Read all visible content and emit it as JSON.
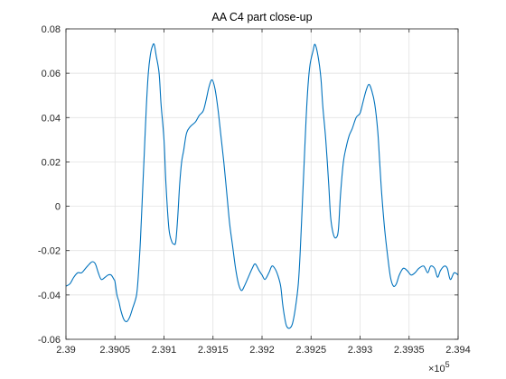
{
  "chart_data": {
    "type": "line",
    "title": "AA C4 part close-up",
    "xlabel": "",
    "ylabel": "",
    "x_exponent_label": "×10",
    "x_exponent_power": "5",
    "xlim": [
      2.39,
      2.394
    ],
    "ylim": [
      -0.06,
      0.08
    ],
    "x_ticks": [
      2.39,
      2.3905,
      2.391,
      2.3915,
      2.392,
      2.3925,
      2.393,
      2.3935,
      2.394
    ],
    "x_tick_labels": [
      "2.39",
      "2.3905",
      "2.391",
      "2.3915",
      "2.392",
      "2.3925",
      "2.393",
      "2.3935",
      "2.394"
    ],
    "y_ticks": [
      -0.06,
      -0.04,
      -0.02,
      0,
      0.02,
      0.04,
      0.06,
      0.08
    ],
    "y_tick_labels": [
      "-0.06",
      "-0.04",
      "-0.02",
      "0",
      "0.02",
      "0.04",
      "0.06",
      "0.08"
    ],
    "grid": true,
    "series": [
      {
        "color": "#0072bd",
        "points": [
          [
            2.39,
            -0.036
          ],
          [
            2.39004,
            -0.035
          ],
          [
            2.39008,
            -0.032
          ],
          [
            2.39012,
            -0.03
          ],
          [
            2.39016,
            -0.03
          ],
          [
            2.3902,
            -0.028
          ],
          [
            2.39024,
            -0.026
          ],
          [
            2.39027,
            -0.025
          ],
          [
            2.3903,
            -0.026
          ],
          [
            2.39033,
            -0.03
          ],
          [
            2.39036,
            -0.033
          ],
          [
            2.3904,
            -0.032
          ],
          [
            2.39043,
            -0.031
          ],
          [
            2.39046,
            -0.031
          ],
          [
            2.39049,
            -0.033
          ],
          [
            2.3905,
            -0.034
          ],
          [
            2.39052,
            -0.04
          ],
          [
            2.39054,
            -0.043
          ],
          [
            2.39056,
            -0.047
          ],
          [
            2.39059,
            -0.051
          ],
          [
            2.39062,
            -0.052
          ],
          [
            2.39065,
            -0.05
          ],
          [
            2.39068,
            -0.046
          ],
          [
            2.39072,
            -0.04
          ],
          [
            2.39074,
            -0.03
          ],
          [
            2.39076,
            -0.015
          ],
          [
            2.39078,
            0.005
          ],
          [
            2.3908,
            0.025
          ],
          [
            2.39082,
            0.045
          ],
          [
            2.39084,
            0.06
          ],
          [
            2.39086,
            0.068
          ],
          [
            2.39088,
            0.072
          ],
          [
            2.3909,
            0.073
          ],
          [
            2.39092,
            0.068
          ],
          [
            2.39095,
            0.06
          ],
          [
            2.39097,
            0.046
          ],
          [
            2.391,
            0.03
          ],
          [
            2.39102,
            0.01
          ],
          [
            2.39105,
            -0.01
          ],
          [
            2.39108,
            -0.016
          ],
          [
            2.3911,
            -0.017
          ],
          [
            2.39112,
            -0.016
          ],
          [
            2.39114,
            -0.005
          ],
          [
            2.39116,
            0.01
          ],
          [
            2.39118,
            0.02
          ],
          [
            2.3912,
            0.025
          ],
          [
            2.39123,
            0.033
          ],
          [
            2.39127,
            0.036
          ],
          [
            2.39132,
            0.038
          ],
          [
            2.39136,
            0.041
          ],
          [
            2.3914,
            0.043
          ],
          [
            2.39143,
            0.048
          ],
          [
            2.39146,
            0.054
          ],
          [
            2.39149,
            0.057
          ],
          [
            2.39152,
            0.053
          ],
          [
            2.39155,
            0.044
          ],
          [
            2.39158,
            0.032
          ],
          [
            2.39161,
            0.02
          ],
          [
            2.39164,
            0.006
          ],
          [
            2.39167,
            -0.008
          ],
          [
            2.3917,
            -0.018
          ],
          [
            2.39173,
            -0.028
          ],
          [
            2.39176,
            -0.035
          ],
          [
            2.39179,
            -0.038
          ],
          [
            2.39182,
            -0.036
          ],
          [
            2.39186,
            -0.032
          ],
          [
            2.3919,
            -0.028
          ],
          [
            2.39193,
            -0.026
          ],
          [
            2.39197,
            -0.029
          ],
          [
            2.392,
            -0.031
          ],
          [
            2.39203,
            -0.033
          ],
          [
            2.39207,
            -0.03
          ],
          [
            2.3921,
            -0.027
          ],
          [
            2.39213,
            -0.028
          ],
          [
            2.39216,
            -0.031
          ],
          [
            2.39219,
            -0.036
          ],
          [
            2.39221,
            -0.044
          ],
          [
            2.39223,
            -0.05
          ],
          [
            2.39225,
            -0.054
          ],
          [
            2.39228,
            -0.055
          ],
          [
            2.39231,
            -0.053
          ],
          [
            2.39234,
            -0.046
          ],
          [
            2.39237,
            -0.035
          ],
          [
            2.39239,
            -0.02
          ],
          [
            2.39241,
            0.0
          ],
          [
            2.39243,
            0.02
          ],
          [
            2.39245,
            0.04
          ],
          [
            2.39247,
            0.055
          ],
          [
            2.39249,
            0.064
          ],
          [
            2.39252,
            0.07
          ],
          [
            2.39254,
            0.073
          ],
          [
            2.39257,
            0.068
          ],
          [
            2.3926,
            0.058
          ],
          [
            2.39262,
            0.045
          ],
          [
            2.39265,
            0.03
          ],
          [
            2.39268,
            0.01
          ],
          [
            2.3927,
            -0.005
          ],
          [
            2.39273,
            -0.013
          ],
          [
            2.39276,
            -0.014
          ],
          [
            2.39278,
            -0.01
          ],
          [
            2.3928,
            0.005
          ],
          [
            2.39283,
            0.02
          ],
          [
            2.39286,
            0.027
          ],
          [
            2.39289,
            0.032
          ],
          [
            2.39292,
            0.035
          ],
          [
            2.39296,
            0.04
          ],
          [
            2.393,
            0.042
          ],
          [
            2.39303,
            0.047
          ],
          [
            2.39306,
            0.052
          ],
          [
            2.39309,
            0.055
          ],
          [
            2.39312,
            0.052
          ],
          [
            2.39315,
            0.046
          ],
          [
            2.39318,
            0.034
          ],
          [
            2.3932,
            0.02
          ],
          [
            2.39322,
            0.006
          ],
          [
            2.39325,
            -0.01
          ],
          [
            2.39328,
            -0.022
          ],
          [
            2.39331,
            -0.032
          ],
          [
            2.39334,
            -0.036
          ],
          [
            2.39337,
            -0.035
          ],
          [
            2.3934,
            -0.031
          ],
          [
            2.39344,
            -0.028
          ],
          [
            2.39348,
            -0.029
          ],
          [
            2.39352,
            -0.031
          ],
          [
            2.39356,
            -0.03
          ],
          [
            2.3936,
            -0.028
          ],
          [
            2.39365,
            -0.027
          ],
          [
            2.39369,
            -0.03
          ],
          [
            2.39372,
            -0.027
          ],
          [
            2.39376,
            -0.028
          ],
          [
            2.39379,
            -0.032
          ],
          [
            2.39382,
            -0.029
          ],
          [
            2.39386,
            -0.027
          ],
          [
            2.39389,
            -0.028
          ],
          [
            2.39392,
            -0.033
          ],
          [
            2.39396,
            -0.03
          ],
          [
            2.394,
            -0.031
          ]
        ]
      }
    ]
  }
}
